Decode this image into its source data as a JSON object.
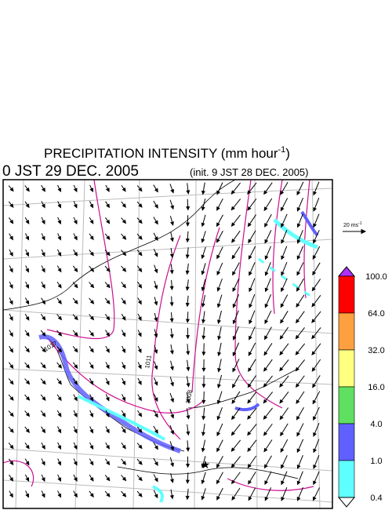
{
  "header": {
    "title": "PRECIPITATION INTENSITY (mm hour",
    "title_sup": "-1",
    "title_end": ")",
    "valid_time": "0 JST 29 DEC. 2005",
    "init_time": "(init. 9 JST 28 DEC. 2005)"
  },
  "vector_scale": {
    "label": "20 ms",
    "label_sup": "-1"
  },
  "legend": {
    "levels": [
      {
        "label": "100.0",
        "color": "#ff0000"
      },
      {
        "label": "64.0",
        "color": "#ffa040"
      },
      {
        "label": "32.0",
        "color": "#ffff80"
      },
      {
        "label": "16.0",
        "color": "#60e060"
      },
      {
        "label": "4.0",
        "color": "#6060ff"
      },
      {
        "label": "1.0",
        "color": "#60ffff"
      },
      {
        "label": "0.4",
        "color": "#ffffff"
      }
    ],
    "top_color": "#b030ff"
  },
  "isobar_labels": [
    "1017",
    "1011",
    "1008"
  ]
}
